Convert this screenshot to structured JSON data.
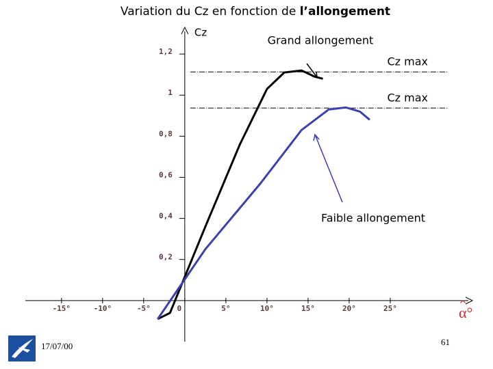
{
  "chart_data": {
    "type": "line",
    "title_parts": [
      "Variation du Cz en fonction de",
      "l’allongement"
    ],
    "y_label": "Cz",
    "x_label": "α°",
    "xlim": [
      -19.4,
      35
    ],
    "ylim": [
      -0.2,
      1.33
    ],
    "xticks": [
      {
        "value": -15,
        "label": "-15°"
      },
      {
        "value": -10,
        "label": "-10°"
      },
      {
        "value": -5,
        "label": "-5°"
      },
      0,
      {
        "value": 5,
        "label": "5°"
      },
      {
        "value": 10,
        "label": "10°"
      },
      {
        "value": 15,
        "label": "15°"
      },
      {
        "value": 20,
        "label": "20°"
      },
      {
        "value": 25,
        "label": "25°"
      }
    ],
    "yticks": [
      {
        "value": 0.2,
        "label": "0,2"
      },
      {
        "value": 0.4,
        "label": "0,4"
      },
      {
        "value": 0.6,
        "label": "0,6"
      },
      {
        "value": 0.8,
        "label": "0,8"
      },
      1,
      {
        "value": 1.2,
        "label": "1,2"
      }
    ],
    "series": [
      {
        "name": "Grand allongement",
        "color": "#000000",
        "x": [
          -3.3,
          -1.8,
          2.5,
          6.7,
          10,
          12.1,
          14.2,
          15.8,
          16.8
        ],
        "values": [
          -0.09,
          -0.06,
          0.36,
          0.76,
          1.03,
          1.11,
          1.12,
          1.09,
          1.08
        ]
      },
      {
        "name": "Faible allongement",
        "color": "#3b3fb0",
        "x": [
          -3.3,
          2.5,
          9.2,
          14.2,
          17.5,
          19.6,
          21.3,
          22.5
        ],
        "values": [
          -0.09,
          0.25,
          0.57,
          0.83,
          0.93,
          0.94,
          0.92,
          0.88
        ]
      }
    ],
    "reference_lines": [
      {
        "value": 1.113,
        "label": "Cz max"
      },
      {
        "value": 0.937,
        "label": "Cz max"
      }
    ]
  },
  "footer": {
    "date": "17/07/00",
    "page": "61"
  }
}
